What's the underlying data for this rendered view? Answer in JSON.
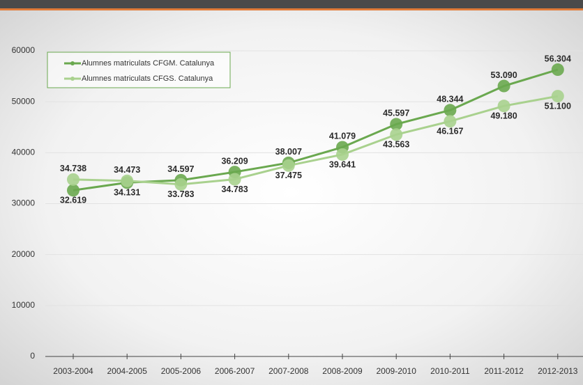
{
  "chart_data": {
    "type": "line",
    "categories": [
      "2003-2004",
      "2004-2005",
      "2005-2006",
      "2006-2007",
      "2007-2008",
      "2008-2009",
      "2009-2010",
      "2010-2011",
      "2011-2012",
      "2012-2013"
    ],
    "series": [
      {
        "name": "Alumnes matriculats CFGM. Catalunya",
        "color": "#6aa84f",
        "values": [
          32619,
          34131,
          34597,
          36209,
          38007,
          41079,
          45597,
          48344,
          53090,
          56304
        ],
        "value_labels": [
          "32.619",
          "34.131",
          "34.597",
          "36.209",
          "38.007",
          "41.079",
          "45.597",
          "48.344",
          "53.090",
          "56.304"
        ]
      },
      {
        "name": "Alumnes matriculats CFGS. Catalunya",
        "color": "#a9d18e",
        "values": [
          34738,
          34473,
          33783,
          34783,
          37475,
          39641,
          43563,
          46167,
          49180,
          51100
        ],
        "value_labels": [
          "34.738",
          "34.473",
          "33.783",
          "34.783",
          "37.475",
          "39.641",
          "43.563",
          "46.167",
          "49.180",
          "51.100"
        ]
      }
    ],
    "ylim": [
      0,
      60000
    ],
    "yticks": [
      0,
      10000,
      20000,
      30000,
      40000,
      50000,
      60000
    ],
    "grid": true,
    "legend": "top-left"
  }
}
